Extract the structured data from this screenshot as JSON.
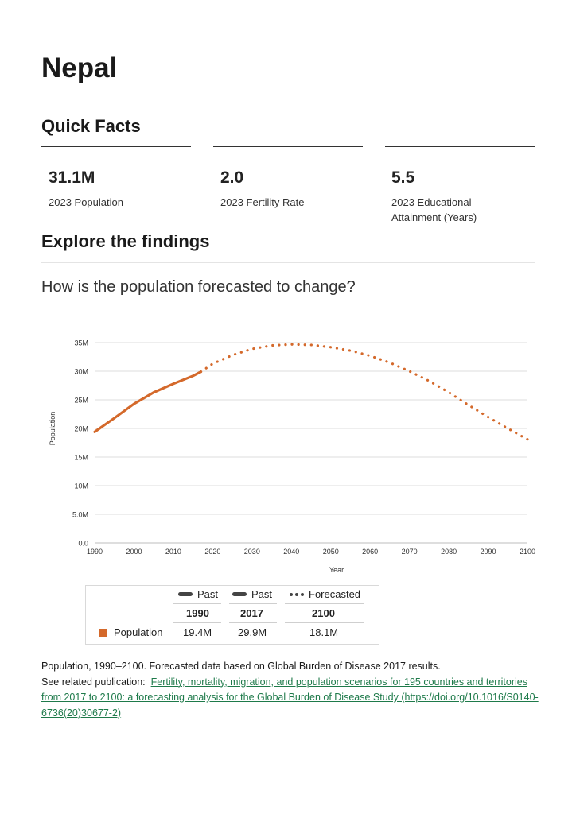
{
  "page": {
    "title": "Nepal"
  },
  "quick_facts": {
    "title": "Quick Facts",
    "items": [
      {
        "value": "31.1M",
        "label": "2023 Population"
      },
      {
        "value": "2.0",
        "label": "2023 Fertility Rate"
      },
      {
        "value": "5.5",
        "label": "2023 Educational Attainment (Years)"
      }
    ]
  },
  "findings": {
    "title": "Explore the findings",
    "question": "How is the population forecasted to change?"
  },
  "chart_data": {
    "type": "line",
    "title": "",
    "xlabel": "Year",
    "ylabel": "Population",
    "xlim": [
      1990,
      2100
    ],
    "ylim": [
      0,
      35
    ],
    "x_ticks": [
      1990,
      2000,
      2010,
      2020,
      2030,
      2040,
      2050,
      2060,
      2070,
      2080,
      2090,
      2100
    ],
    "x_tick_labels": [
      "1990",
      "2000",
      "2010",
      "2020",
      "2030",
      "2040",
      "2050",
      "2060",
      "2070",
      "2080",
      "2090",
      "2100"
    ],
    "y_ticks": [
      0,
      5,
      10,
      15,
      20,
      25,
      30,
      35
    ],
    "y_tick_labels": [
      "0.0",
      "5.0M",
      "10M",
      "15M",
      "20M",
      "25M",
      "30M",
      "35M"
    ],
    "grid": true,
    "series": [
      {
        "name": "Population (Past)",
        "style": "solid",
        "color": "#d4692b",
        "x": [
          1990,
          1995,
          2000,
          2005,
          2010,
          2015,
          2017
        ],
        "values": [
          19.4,
          21.8,
          24.3,
          26.3,
          27.8,
          29.2,
          29.9
        ]
      },
      {
        "name": "Population (Forecasted)",
        "style": "dotted",
        "color": "#d4692b",
        "x": [
          2017,
          2020,
          2025,
          2030,
          2035,
          2040,
          2045,
          2050,
          2055,
          2060,
          2065,
          2070,
          2075,
          2080,
          2085,
          2090,
          2095,
          2100
        ],
        "values": [
          29.9,
          31.3,
          32.8,
          33.9,
          34.5,
          34.7,
          34.6,
          34.2,
          33.6,
          32.7,
          31.5,
          30.0,
          28.3,
          26.3,
          24.1,
          22.0,
          20.0,
          18.1
        ]
      }
    ]
  },
  "legend": {
    "headers": [
      {
        "style": "solid",
        "label": "Past",
        "year": "1990"
      },
      {
        "style": "solid",
        "label": "Past",
        "year": "2017"
      },
      {
        "style": "dotted",
        "label": "Forecasted",
        "year": "2100"
      }
    ],
    "row_label": "Population",
    "row_values": [
      "19.4M",
      "29.9M",
      "18.1M"
    ],
    "swatch_color": "#d4692b"
  },
  "caption": {
    "line1": "Population, 1990–2100. Forecasted data based on Global Burden of Disease 2017 results.",
    "related_prefix": "See related publication:",
    "link_text": "Fertility, mortality, migration, and population scenarios for 195 countries and territories from 2017 to 2100: a forecasting analysis for the Global Burden of Disease Study (https://doi.org/10.1016/S0140-6736(20)30677-2)"
  }
}
